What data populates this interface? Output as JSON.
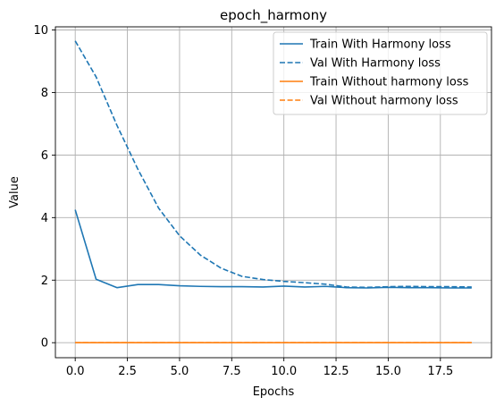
{
  "chart_data": {
    "type": "line",
    "title": "epoch_harmony",
    "xlabel": "Epochs",
    "ylabel": "Value",
    "xlim": [
      -0.95,
      19.95
    ],
    "ylim": [
      -0.48,
      10.1
    ],
    "xticks": [
      0.0,
      2.5,
      5.0,
      7.5,
      10.0,
      12.5,
      15.0,
      17.5
    ],
    "xtick_labels": [
      "0.0",
      "2.5",
      "5.0",
      "7.5",
      "10.0",
      "12.5",
      "15.0",
      "17.5"
    ],
    "yticks": [
      0,
      2,
      4,
      6,
      8,
      10
    ],
    "ytick_labels": [
      "0",
      "2",
      "4",
      "6",
      "8",
      "10"
    ],
    "grid": true,
    "legend_position": "top-right",
    "x": [
      0,
      1,
      2,
      3,
      4,
      5,
      6,
      7,
      8,
      9,
      10,
      11,
      12,
      13,
      14,
      15,
      16,
      17,
      18,
      19
    ],
    "series": [
      {
        "name": "Train With Harmony loss",
        "color": "#1f77b4",
        "style": "solid",
        "values": [
          4.25,
          2.03,
          1.76,
          1.86,
          1.86,
          1.82,
          1.8,
          1.79,
          1.79,
          1.78,
          1.81,
          1.78,
          1.8,
          1.76,
          1.75,
          1.77,
          1.76,
          1.76,
          1.75,
          1.75
        ]
      },
      {
        "name": "Val With Harmony loss",
        "color": "#1f77b4",
        "style": "dashed",
        "values": [
          9.65,
          8.5,
          6.95,
          5.55,
          4.3,
          3.42,
          2.8,
          2.38,
          2.12,
          2.02,
          1.96,
          1.92,
          1.87,
          1.78,
          1.77,
          1.79,
          1.8,
          1.79,
          1.79,
          1.78
        ]
      },
      {
        "name": "Train Without harmony loss",
        "color": "#ff7f0e",
        "style": "solid",
        "values": [
          0,
          0,
          0,
          0,
          0,
          0,
          0,
          0,
          0,
          0,
          0,
          0,
          0,
          0,
          0,
          0,
          0,
          0,
          0,
          0
        ]
      },
      {
        "name": "Val Without harmony loss",
        "color": "#ff7f0e",
        "style": "dashed",
        "values": [
          0,
          0,
          0,
          0,
          0,
          0,
          0,
          0,
          0,
          0,
          0,
          0,
          0,
          0,
          0,
          0,
          0,
          0,
          0,
          0
        ]
      }
    ]
  }
}
